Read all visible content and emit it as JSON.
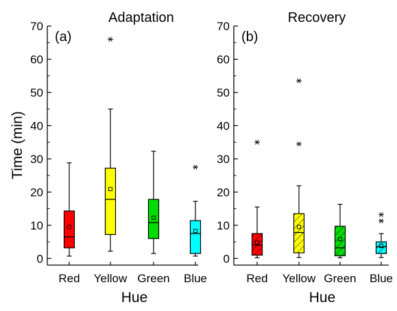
{
  "figure": {
    "ylabel": "Time (min)"
  },
  "chart_data": [
    {
      "type": "box",
      "panel_label": "(a)",
      "title": "Adaptation",
      "xlabel": "Hue",
      "ylabel": "Time (min)",
      "ylim": [
        -2,
        70
      ],
      "yticks": [
        0,
        10,
        20,
        30,
        40,
        50,
        60,
        70
      ],
      "categories": [
        "Red",
        "Yellow",
        "Green",
        "Blue"
      ],
      "boxes": [
        {
          "category": "Red",
          "color": "#ff0000",
          "hatch": false,
          "whisker_low": 0.7,
          "q1": 3.2,
          "median": 6.5,
          "q3": 14.3,
          "whisker_high": 28.8,
          "mean": 9.5,
          "outliers": []
        },
        {
          "category": "Yellow",
          "color": "#ffff00",
          "hatch": false,
          "whisker_low": 2.2,
          "q1": 7.2,
          "median": 17.8,
          "q3": 27.2,
          "whisker_high": 45.0,
          "mean": 20.9,
          "outliers": [
            66.0
          ]
        },
        {
          "category": "Green",
          "color": "#00dd00",
          "hatch": false,
          "whisker_low": 1.5,
          "q1": 6.0,
          "median": 10.8,
          "q3": 17.8,
          "whisker_high": 32.3,
          "mean": 12.3,
          "outliers": []
        },
        {
          "category": "Blue",
          "color": "#00ffff",
          "hatch": false,
          "whisker_low": 0.7,
          "q1": 1.5,
          "median": 7.5,
          "q3": 11.4,
          "whisker_high": 17.2,
          "mean": 8.3,
          "outliers": [
            27.5
          ]
        }
      ]
    },
    {
      "type": "box",
      "panel_label": "(b)",
      "title": "Recovery",
      "xlabel": "Hue",
      "ylabel": "",
      "ylim": [
        -2,
        70
      ],
      "yticks": [
        0,
        10,
        20,
        30,
        40,
        50,
        60,
        70
      ],
      "categories": [
        "Red",
        "Yellow",
        "Green",
        "Blue"
      ],
      "boxes": [
        {
          "category": "Red",
          "color": "#ff0000",
          "hatch": true,
          "whisker_low": 0.2,
          "q1": 1.0,
          "median": 4.0,
          "q3": 7.5,
          "whisker_high": 15.5,
          "mean": 4.8,
          "outliers": [
            35.0
          ]
        },
        {
          "category": "Yellow",
          "color": "#ffff00",
          "hatch": true,
          "whisker_low": 0.3,
          "q1": 1.7,
          "median": 7.8,
          "q3": 13.5,
          "whisker_high": 21.9,
          "mean": 9.5,
          "outliers": [
            34.5,
            53.5
          ]
        },
        {
          "category": "Green",
          "color": "#00dd00",
          "hatch": true,
          "whisker_low": 0.2,
          "q1": 0.8,
          "median": 3.2,
          "q3": 9.7,
          "whisker_high": 16.3,
          "mean": 5.8,
          "outliers": []
        },
        {
          "category": "Blue",
          "color": "#00ffff",
          "hatch": true,
          "whisker_low": 0.3,
          "q1": 1.5,
          "median": 3.5,
          "q3": 5.0,
          "whisker_high": 7.5,
          "mean": 3.8,
          "outliers": [
            11.3,
            13.2
          ]
        }
      ]
    }
  ]
}
